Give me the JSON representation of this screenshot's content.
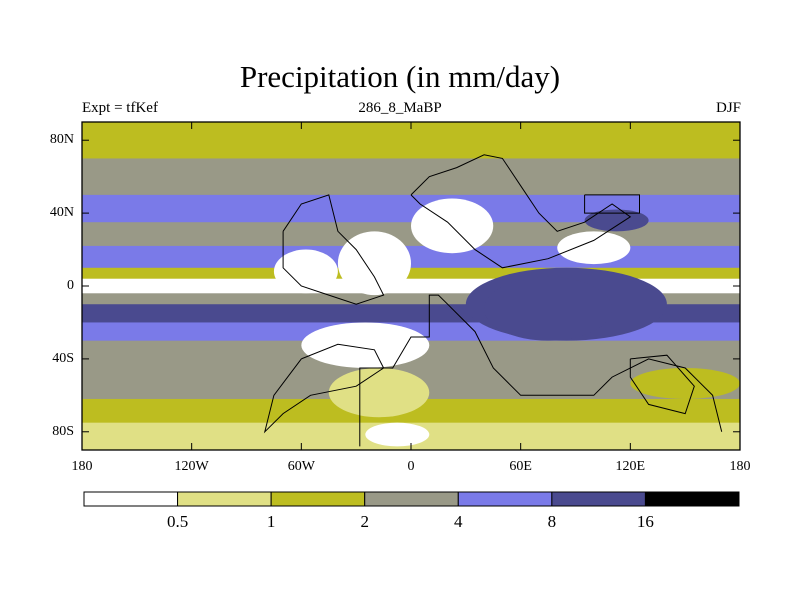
{
  "chart_data": {
    "type": "heatmap",
    "title": "Precipitation (in mm/day)",
    "subtitle_left": "Expt = tfKef",
    "subtitle_center": "286_8_MaBP",
    "subtitle_right": "DJF",
    "x_ticks": [
      "180",
      "120W",
      "60W",
      "0",
      "60E",
      "120E",
      "180"
    ],
    "x_tick_values": [
      -180,
      -120,
      -60,
      0,
      60,
      120,
      180
    ],
    "y_ticks": [
      "80N",
      "40N",
      "0",
      "40S",
      "80S"
    ],
    "y_tick_values": [
      80,
      40,
      0,
      -40,
      -80
    ],
    "xlim": [
      -180,
      180
    ],
    "ylim": [
      -90,
      90
    ],
    "colorbar": {
      "levels": [
        "0.5",
        "1",
        "2",
        "4",
        "8",
        "16"
      ],
      "colors": [
        "#ffffff",
        "#e0e085",
        "#bdbd20",
        "#999987",
        "#7a7ae8",
        "#4a4a8f",
        "#000000"
      ]
    },
    "bands": [
      {
        "lat": [
          70,
          90
        ],
        "level": 2
      },
      {
        "lat": [
          50,
          70
        ],
        "level": 3
      },
      {
        "lat": [
          35,
          50
        ],
        "level": 4
      },
      {
        "lat": [
          22,
          35
        ],
        "level": 3
      },
      {
        "lat": [
          10,
          22
        ],
        "level": 4
      },
      {
        "lat": [
          4,
          10
        ],
        "level": 2
      },
      {
        "lat": [
          -4,
          4
        ],
        "level": 0
      },
      {
        "lat": [
          -10,
          -4
        ],
        "level": 3
      },
      {
        "lat": [
          -20,
          -10
        ],
        "level": 5
      },
      {
        "lat": [
          -30,
          -20
        ],
        "level": 4
      },
      {
        "lat": [
          -45,
          -30
        ],
        "level": 3
      },
      {
        "lat": [
          -62,
          -45
        ],
        "level": 3
      },
      {
        "lat": [
          -75,
          -62
        ],
        "level": 2
      },
      {
        "lat": [
          -90,
          -75
        ],
        "level": 1
      }
    ],
    "patches": [
      {
        "lon": [
          -40,
          0
        ],
        "lat": [
          -5,
          30
        ],
        "level": 0
      },
      {
        "lon": [
          -75,
          -40
        ],
        "lat": [
          -4,
          20
        ],
        "level": 0
      },
      {
        "lon": [
          0,
          45
        ],
        "lat": [
          18,
          48
        ],
        "level": 0
      },
      {
        "lon": [
          80,
          120
        ],
        "lat": [
          12,
          30
        ],
        "level": 0
      },
      {
        "lon": [
          30,
          140
        ],
        "lat": [
          -30,
          10
        ],
        "level": 5
      },
      {
        "lon": [
          40,
          110
        ],
        "lat": [
          -30,
          5
        ],
        "level": 5
      },
      {
        "lon": [
          -60,
          10
        ],
        "lat": [
          -45,
          -20
        ],
        "level": 0
      },
      {
        "lon": [
          -45,
          10
        ],
        "lat": [
          -72,
          -45
        ],
        "level": 1
      },
      {
        "lon": [
          -25,
          10
        ],
        "lat": [
          -88,
          -75
        ],
        "level": 0
      },
      {
        "lon": [
          95,
          130
        ],
        "lat": [
          30,
          42
        ],
        "level": 5
      },
      {
        "lon": [
          120,
          180
        ],
        "lat": [
          -62,
          -45
        ],
        "level": 2
      }
    ],
    "outlines": [
      [
        [
          -28,
          -88
        ],
        [
          -28,
          -45
        ],
        [
          -10,
          -45
        ],
        [
          0,
          -28
        ],
        [
          10,
          -28
        ],
        [
          10,
          -5
        ],
        [
          15,
          -5
        ],
        [
          20,
          -10
        ],
        [
          35,
          -25
        ],
        [
          45,
          -45
        ],
        [
          60,
          -60
        ],
        [
          80,
          -60
        ],
        [
          100,
          -60
        ],
        [
          110,
          -50
        ],
        [
          130,
          -40
        ],
        [
          150,
          -45
        ],
        [
          165,
          -60
        ],
        [
          170,
          -80
        ]
      ],
      [
        [
          -70,
          30
        ],
        [
          -60,
          45
        ],
        [
          -45,
          50
        ],
        [
          -40,
          30
        ],
        [
          -30,
          20
        ],
        [
          -20,
          5
        ],
        [
          -15,
          -5
        ],
        [
          -30,
          -10
        ],
        [
          -45,
          -5
        ],
        [
          -60,
          0
        ],
        [
          -70,
          10
        ],
        [
          -70,
          30
        ]
      ],
      [
        [
          0,
          50
        ],
        [
          10,
          60
        ],
        [
          25,
          65
        ],
        [
          40,
          72
        ],
        [
          50,
          70
        ],
        [
          60,
          55
        ],
        [
          70,
          40
        ],
        [
          80,
          30
        ],
        [
          95,
          35
        ],
        [
          110,
          45
        ],
        [
          120,
          38
        ],
        [
          100,
          25
        ],
        [
          75,
          15
        ],
        [
          50,
          10
        ],
        [
          35,
          20
        ],
        [
          20,
          35
        ],
        [
          5,
          45
        ],
        [
          0,
          50
        ]
      ],
      [
        [
          95,
          50
        ],
        [
          125,
          50
        ],
        [
          125,
          40
        ],
        [
          95,
          40
        ],
        [
          95,
          50
        ]
      ],
      [
        [
          -60,
          -40
        ],
        [
          -40,
          -32
        ],
        [
          -20,
          -35
        ],
        [
          -15,
          -45
        ],
        [
          -30,
          -55
        ],
        [
          -55,
          -60
        ],
        [
          -70,
          -70
        ],
        [
          -80,
          -80
        ],
        [
          -75,
          -60
        ],
        [
          -60,
          -40
        ]
      ],
      [
        [
          120,
          -40
        ],
        [
          140,
          -38
        ],
        [
          155,
          -55
        ],
        [
          150,
          -70
        ],
        [
          130,
          -65
        ],
        [
          120,
          -50
        ],
        [
          120,
          -40
        ]
      ]
    ]
  }
}
